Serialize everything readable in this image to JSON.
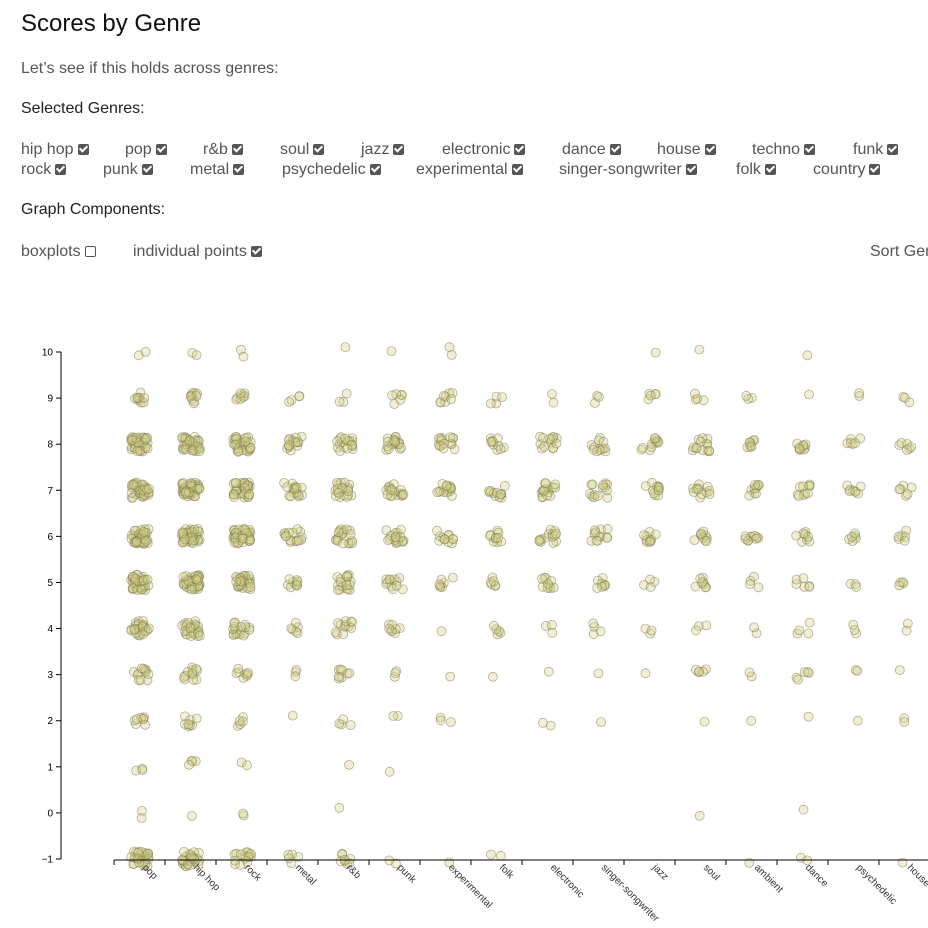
{
  "title": "Scores by Genre",
  "intro": "Let’s see if this holds across genres:",
  "selected_genres_label": "Selected Genres:",
  "genres_row1": [
    {
      "label": "hip hop",
      "checked": true
    },
    {
      "label": "pop",
      "checked": true
    },
    {
      "label": "r&b",
      "checked": true
    },
    {
      "label": "soul",
      "checked": true
    },
    {
      "label": "jazz",
      "checked": true
    },
    {
      "label": "electronic",
      "checked": true
    },
    {
      "label": "dance",
      "checked": true
    },
    {
      "label": "house",
      "checked": true
    },
    {
      "label": "techno",
      "checked": true
    },
    {
      "label": "funk",
      "checked": true
    }
  ],
  "genres_row2": [
    {
      "label": "rock",
      "checked": true
    },
    {
      "label": "punk",
      "checked": true
    },
    {
      "label": "metal",
      "checked": true
    },
    {
      "label": "psychedelic",
      "checked": true
    },
    {
      "label": "experimental",
      "checked": true
    },
    {
      "label": "singer-songwriter",
      "checked": true
    },
    {
      "label": "folk",
      "checked": true
    },
    {
      "label": "country",
      "checked": true
    }
  ],
  "graph_components_label": "Graph Components:",
  "components": [
    {
      "label": "boxplots",
      "checked": false
    },
    {
      "label": "individual points",
      "checked": true
    }
  ],
  "sort_label": "Sort Gen",
  "chart_data": {
    "type": "scatter",
    "title": "",
    "xlabel": "",
    "ylabel": "",
    "ylim": [
      -1,
      10
    ],
    "yticks": [
      -1,
      0,
      1,
      2,
      3,
      4,
      5,
      6,
      7,
      8,
      9,
      10
    ],
    "point_color": "#d4d08a",
    "point_stroke": "#7a7548",
    "categories": [
      "pop",
      "hip hop",
      "rock",
      "metal",
      "r&b",
      "punk",
      "experimental",
      "folk",
      "electronic",
      "singer-songwriter",
      "jazz",
      "soul",
      "ambient",
      "dance",
      "psychedelic",
      "house"
    ],
    "counts": [
      {
        "-1": 30,
        "0": 2,
        "1": 3,
        "2": 8,
        "3": 12,
        "4": 25,
        "5": 40,
        "6": 40,
        "7": 40,
        "8": 35,
        "9": 10,
        "10": 2
      },
      {
        "-1": 30,
        "0": 1,
        "1": 4,
        "2": 8,
        "3": 12,
        "4": 25,
        "5": 40,
        "6": 40,
        "7": 40,
        "8": 35,
        "9": 10,
        "10": 2
      },
      {
        "-1": 15,
        "0": 2,
        "1": 2,
        "2": 5,
        "3": 8,
        "4": 18,
        "5": 30,
        "6": 35,
        "7": 35,
        "8": 30,
        "9": 8,
        "10": 2
      },
      {
        "-1": 5,
        "0": 0,
        "1": 0,
        "2": 1,
        "3": 3,
        "4": 6,
        "5": 10,
        "6": 15,
        "7": 18,
        "8": 15,
        "9": 4,
        "10": 0
      },
      {
        "-1": 8,
        "0": 1,
        "1": 1,
        "2": 4,
        "3": 8,
        "4": 12,
        "5": 18,
        "6": 18,
        "7": 20,
        "8": 18,
        "9": 3,
        "10": 1
      },
      {
        "-1": 2,
        "0": 0,
        "1": 1,
        "2": 2,
        "3": 3,
        "4": 8,
        "5": 12,
        "6": 18,
        "7": 18,
        "8": 18,
        "9": 6,
        "10": 1
      },
      {
        "-1": 1,
        "0": 0,
        "1": 0,
        "2": 3,
        "3": 1,
        "4": 1,
        "5": 7,
        "6": 12,
        "7": 15,
        "8": 15,
        "9": 8,
        "10": 2
      },
      {
        "-1": 2,
        "0": 0,
        "1": 0,
        "2": 0,
        "3": 1,
        "4": 5,
        "5": 6,
        "6": 10,
        "7": 12,
        "8": 10,
        "9": 4,
        "10": 0
      },
      {
        "-1": 0,
        "0": 0,
        "1": 0,
        "2": 2,
        "3": 1,
        "4": 3,
        "5": 10,
        "6": 14,
        "7": 16,
        "8": 14,
        "9": 2,
        "10": 0
      },
      {
        "-1": 0,
        "0": 0,
        "1": 0,
        "2": 1,
        "3": 1,
        "4": 4,
        "5": 8,
        "6": 12,
        "7": 14,
        "8": 12,
        "9": 3,
        "10": 0
      },
      {
        "-1": 0,
        "0": 0,
        "1": 0,
        "2": 0,
        "3": 1,
        "4": 3,
        "5": 4,
        "6": 10,
        "7": 12,
        "8": 12,
        "9": 5,
        "10": 1
      },
      {
        "-1": 0,
        "0": 1,
        "1": 0,
        "2": 1,
        "3": 5,
        "4": 3,
        "5": 8,
        "6": 10,
        "7": 12,
        "8": 14,
        "9": 4,
        "10": 1
      },
      {
        "-1": 1,
        "0": 0,
        "1": 0,
        "2": 1,
        "3": 2,
        "4": 2,
        "5": 4,
        "6": 10,
        "7": 10,
        "8": 8,
        "9": 3,
        "10": 0
      },
      {
        "-1": 2,
        "0": 1,
        "1": 0,
        "2": 1,
        "3": 5,
        "4": 4,
        "5": 6,
        "6": 8,
        "7": 10,
        "8": 10,
        "9": 1,
        "10": 1
      },
      {
        "-1": 0,
        "0": 0,
        "1": 0,
        "2": 1,
        "3": 2,
        "4": 3,
        "5": 3,
        "6": 6,
        "7": 8,
        "8": 6,
        "9": 2,
        "10": 0
      },
      {
        "-1": 1,
        "0": 0,
        "1": 0,
        "2": 2,
        "3": 1,
        "4": 2,
        "5": 4,
        "6": 6,
        "7": 6,
        "8": 6,
        "9": 3,
        "10": 0
      }
    ]
  }
}
